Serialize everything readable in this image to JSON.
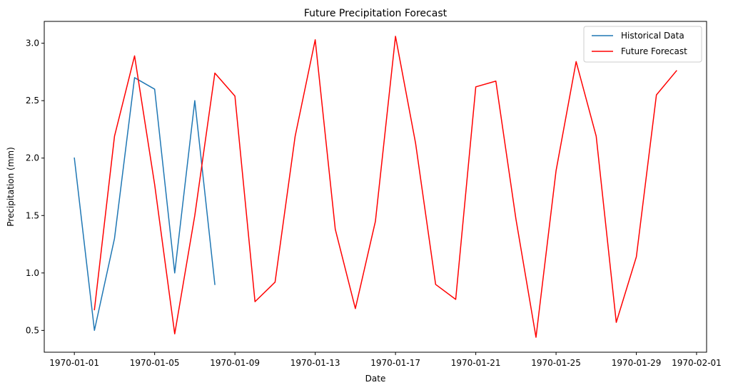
{
  "chart_data": {
    "type": "line",
    "title": "Future Precipitation Forecast",
    "xlabel": "Date",
    "ylabel": "Precipitation (mm)",
    "x_tick_labels": [
      "1970-01-01",
      "1970-01-05",
      "1970-01-09",
      "1970-01-13",
      "1970-01-17",
      "1970-01-21",
      "1970-01-25",
      "1970-01-29",
      "1970-02-01"
    ],
    "x_ticks": [
      "1970-01-01",
      "1970-01-05",
      "1970-01-09",
      "1970-01-13",
      "1970-01-17",
      "1970-01-21",
      "1970-01-25",
      "1970-01-29",
      "1970-02-01"
    ],
    "y_tick_labels": [
      "0.5",
      "1.0",
      "1.5",
      "2.0",
      "2.5",
      "3.0"
    ],
    "y_ticks": [
      0.5,
      1.0,
      1.5,
      2.0,
      2.5,
      3.0
    ],
    "xlim": [
      "1969-12-30T12:00",
      "1970-02-01T12:00"
    ],
    "ylim": [
      0.31,
      3.19
    ],
    "grid": false,
    "legend_position": "top-right",
    "series": [
      {
        "name": "Historical Data",
        "color": "#1f77b4",
        "x": [
          "1970-01-01",
          "1970-01-02",
          "1970-01-03",
          "1970-01-04",
          "1970-01-05",
          "1970-01-06",
          "1970-01-07",
          "1970-01-08"
        ],
        "y": [
          2.0,
          0.5,
          1.3,
          2.7,
          2.6,
          1.0,
          2.5,
          0.9
        ]
      },
      {
        "name": "Future Forecast",
        "color": "#ff0000",
        "x": [
          "1970-01-02",
          "1970-01-03",
          "1970-01-04",
          "1970-01-05",
          "1970-01-06",
          "1970-01-07",
          "1970-01-08",
          "1970-01-09",
          "1970-01-10",
          "1970-01-11",
          "1970-01-12",
          "1970-01-13",
          "1970-01-14",
          "1970-01-15",
          "1970-01-16",
          "1970-01-17",
          "1970-01-18",
          "1970-01-19",
          "1970-01-20",
          "1970-01-21",
          "1970-01-22",
          "1970-01-23",
          "1970-01-24",
          "1970-01-25",
          "1970-01-26",
          "1970-01-27",
          "1970-01-28",
          "1970-01-29",
          "1970-01-30",
          "1970-01-31"
        ],
        "y": [
          0.68,
          2.19,
          2.89,
          1.77,
          0.47,
          1.5,
          2.74,
          2.54,
          0.75,
          0.92,
          2.19,
          3.03,
          1.38,
          0.69,
          1.45,
          3.06,
          2.13,
          0.9,
          0.77,
          2.62,
          2.67,
          1.47,
          0.44,
          1.89,
          2.84,
          2.19,
          0.57,
          1.14,
          2.55,
          2.76
        ]
      }
    ]
  }
}
